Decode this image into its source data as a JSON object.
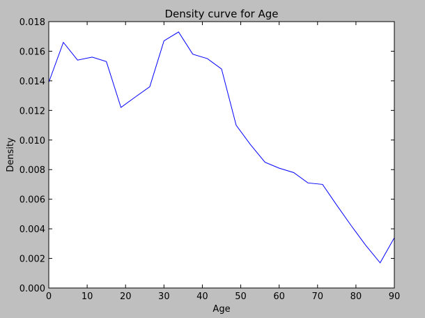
{
  "chart_data": {
    "type": "line",
    "title": "Density curve for Age",
    "xlabel": "Age",
    "ylabel": "Density",
    "xlim": [
      0,
      90
    ],
    "ylim": [
      0,
      0.018
    ],
    "grid": false,
    "colors": {
      "background": "#bfbfbf",
      "plot": "#ffffff",
      "line": "#0000ff"
    },
    "x_ticks": [
      "0",
      "10",
      "20",
      "30",
      "40",
      "50",
      "60",
      "70",
      "80",
      "90"
    ],
    "y_ticks": [
      "0.000",
      "0.002",
      "0.004",
      "0.006",
      "0.008",
      "0.010",
      "0.012",
      "0.014",
      "0.016",
      "0.018"
    ],
    "series": [
      {
        "x": [
          0,
          3.8,
          7.5,
          11.3,
          15,
          18.8,
          22.5,
          26.3,
          30,
          33.8,
          37.5,
          41.3,
          45,
          48.8,
          52.5,
          56.3,
          60,
          63.8,
          67.5,
          71.3,
          75,
          78.8,
          82.5,
          86.3,
          90
        ],
        "values": [
          0.0139,
          0.0166,
          0.0154,
          0.0156,
          0.0153,
          0.0122,
          0.0129,
          0.0136,
          0.0167,
          0.0173,
          0.0158,
          0.0155,
          0.0148,
          0.011,
          0.0097,
          0.0085,
          0.0081,
          0.0078,
          0.0071,
          0.007,
          0.0056,
          0.0042,
          0.0029,
          0.0017,
          0.0034
        ]
      }
    ]
  }
}
